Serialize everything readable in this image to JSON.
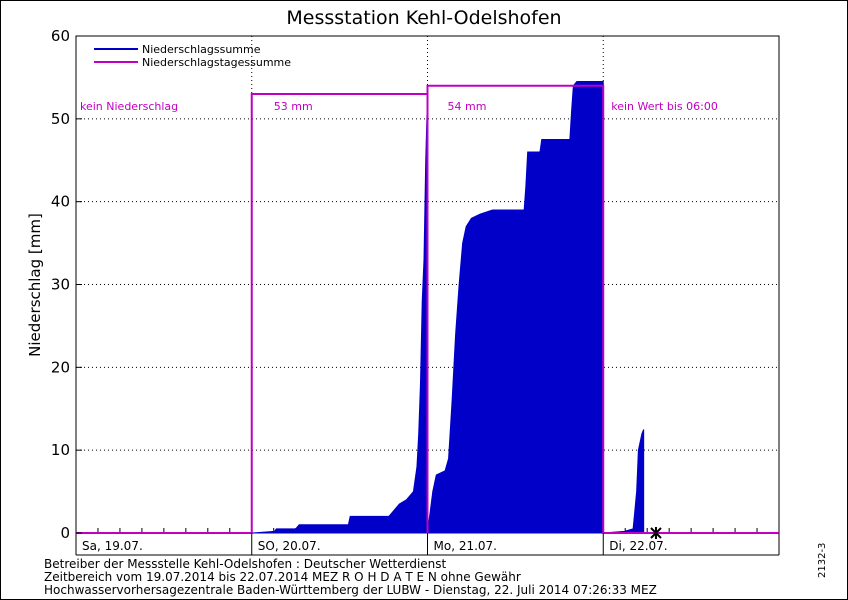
{
  "chart_data": {
    "type": "area",
    "title": "Messstation Kehl-Odelshofen",
    "ylabel": "Niederschlag [mm]",
    "ylim": [
      0,
      60
    ],
    "yticks": [
      0,
      10,
      20,
      30,
      40,
      50,
      60
    ],
    "xlim_days": [
      0,
      4
    ],
    "grid": true,
    "legend": {
      "position": "top-left",
      "entries": [
        {
          "name": "Niederschlagssumme",
          "color": "#0000c8"
        },
        {
          "name": "Niederschlagstagessumme",
          "color": "#c000c0"
        }
      ]
    },
    "day_labels": [
      {
        "day": 0,
        "label": "Sa, 19.07."
      },
      {
        "day": 1,
        "label": "SO, 20.07."
      },
      {
        "day": 2,
        "label": "Mo, 21.07."
      },
      {
        "day": 3,
        "label": "Di, 22.07."
      }
    ],
    "annotations": [
      {
        "day": 0,
        "text": "kein Niederschlag"
      },
      {
        "day": 1,
        "text": "53 mm"
      },
      {
        "day": 2,
        "text": "54 mm"
      },
      {
        "day": 3,
        "text": "kein Wert bis 06:00"
      }
    ],
    "daily_totals": [
      {
        "start": 0,
        "end": 1,
        "value": 0
      },
      {
        "start": 1,
        "end": 2,
        "value": 53
      },
      {
        "start": 2,
        "end": 3,
        "value": 54
      },
      {
        "start": 3,
        "end": 4,
        "value": 0
      }
    ],
    "cumulative_series": [
      {
        "name": "day-1",
        "points": [
          [
            1.0,
            0
          ],
          [
            1.13,
            0.2
          ],
          [
            1.14,
            0.5
          ],
          [
            1.25,
            0.5
          ],
          [
            1.27,
            1.0
          ],
          [
            1.55,
            1.0
          ],
          [
            1.56,
            2.0
          ],
          [
            1.78,
            2.0
          ],
          [
            1.8,
            2.5
          ],
          [
            1.84,
            3.5
          ],
          [
            1.88,
            4.0
          ],
          [
            1.92,
            5.0
          ],
          [
            1.94,
            8.0
          ],
          [
            1.95,
            12.0
          ],
          [
            1.96,
            18.0
          ],
          [
            1.97,
            28.0
          ],
          [
            1.98,
            33.0
          ],
          [
            1.99,
            45.0
          ],
          [
            2.0,
            53.0
          ]
        ]
      },
      {
        "name": "day-2",
        "points": [
          [
            2.0,
            0
          ],
          [
            2.03,
            5.0
          ],
          [
            2.05,
            7.0
          ],
          [
            2.1,
            7.5
          ],
          [
            2.12,
            9.0
          ],
          [
            2.14,
            16.0
          ],
          [
            2.16,
            24.0
          ],
          [
            2.18,
            30.0
          ],
          [
            2.2,
            35.0
          ],
          [
            2.22,
            37.0
          ],
          [
            2.25,
            38.0
          ],
          [
            2.3,
            38.5
          ],
          [
            2.37,
            39.0
          ],
          [
            2.55,
            39.0
          ],
          [
            2.56,
            42.0
          ],
          [
            2.57,
            46.0
          ],
          [
            2.64,
            46.0
          ],
          [
            2.65,
            47.5
          ],
          [
            2.81,
            47.5
          ],
          [
            2.82,
            51.0
          ],
          [
            2.83,
            54.0
          ],
          [
            2.85,
            54.5
          ],
          [
            3.0,
            54.5
          ]
        ]
      },
      {
        "name": "day-3",
        "points": [
          [
            3.0,
            0
          ],
          [
            3.12,
            0.2
          ],
          [
            3.17,
            0.5
          ],
          [
            3.19,
            5.0
          ],
          [
            3.2,
            10.0
          ],
          [
            3.21,
            11.0
          ],
          [
            3.22,
            12.0
          ],
          [
            3.23,
            12.5
          ]
        ]
      }
    ]
  },
  "footer": {
    "line1": "Betreiber der Messstelle Kehl-Odelshofen : Deutscher Wetterdienst",
    "line2": "Zeitbereich vom 19.07.2014 bis 22.07.2014    MEZ     R O H D A T E N ohne Gewähr",
    "line3": "Hochwasservorhersagezentrale Baden-Württemberg der LUBW - Dienstag, 22. Juli 2014 07:26:33 MEZ",
    "side_id": "2132-3"
  }
}
